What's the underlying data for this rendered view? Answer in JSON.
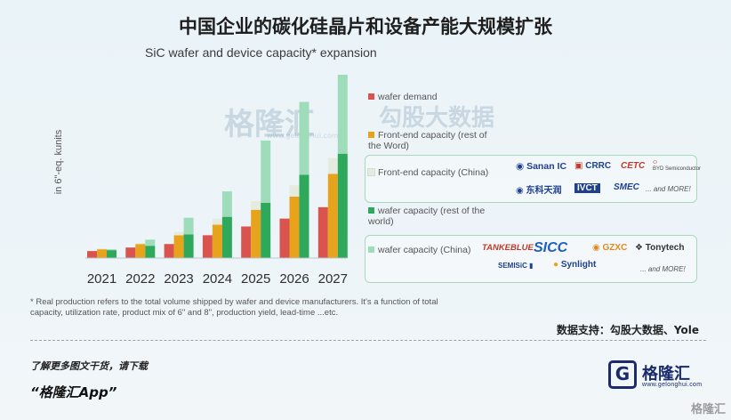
{
  "title": "中国企业的碳化硅晶片和设备产能大规模扩张",
  "subtitle": "SiC wafer and device capacity* expansion",
  "chart_data": {
    "type": "bar",
    "subtype": "grouped-stacked",
    "categories": [
      "2021",
      "2022",
      "2023",
      "2024",
      "2025",
      "2026",
      "2027"
    ],
    "ylabel": "in 6\"-eq. kunits",
    "ylim": [
      0,
      210
    ],
    "grid": false,
    "groups": [
      {
        "stack": "demand",
        "series": [
          {
            "name": "wafer demand",
            "color": "#d9534f",
            "values": [
              8,
              12,
              16,
              26,
              36,
              45,
              58
            ]
          }
        ]
      },
      {
        "stack": "front-end",
        "series": [
          {
            "name": "Front-end capacity (rest of the Word)",
            "color": "#e8a31d",
            "values": [
              10,
              16,
              26,
              38,
              55,
              70,
              96
            ]
          },
          {
            "name": "Front-end capacity (China)",
            "color": "#e5ecdf",
            "values": [
              1,
              1,
              4,
              7,
              10,
              13,
              18
            ]
          }
        ]
      },
      {
        "stack": "wafer",
        "series": [
          {
            "name": "wafer capacity (rest of the world)",
            "color": "#2ea85a",
            "values": [
              9,
              14,
              27,
              47,
              63,
              95,
              119
            ]
          },
          {
            "name": "wafer capacity (China)",
            "color": "#9fdcb9",
            "values": [
              1,
              7,
              19,
              29,
              71,
              83,
              90
            ]
          }
        ]
      }
    ]
  },
  "legend": {
    "items": [
      {
        "label": "wafer demand",
        "color": "#d9534f"
      },
      {
        "label": "Front-end capacity (rest of the Word)",
        "color": "#e8a31d"
      },
      {
        "label": "Front-end capacity (China)",
        "color": "#e5ecdf"
      },
      {
        "label": "wafer capacity (rest of the world)",
        "color": "#2ea85a"
      },
      {
        "label": "wafer capacity (China)",
        "color": "#9fdcb9"
      }
    ],
    "frontend_logos": [
      "Sanan IC",
      "CRRC",
      "CETC",
      "BYD Semiconductor",
      "东科天润",
      "IVCT",
      "SMEC",
      "... and MORE!"
    ],
    "wafer_logos": [
      "TANKEBLUE",
      "SICC",
      "GZXC",
      "Tonytech",
      "SEMISiC",
      "Synlight",
      "... and MORE!"
    ]
  },
  "footnote": "* Real production refers to the total volume shipped by wafer and device manufacturers. It's a function of total capacity, utilization rate, product mix of 6\" and 8\", production yield, lead-time ...etc.",
  "source": "数据支持：勾股大数据、Yole",
  "promo": {
    "line1": "了解更多图文干货，请下载",
    "line2": "“格隆汇App”"
  },
  "brand": {
    "mark": "G",
    "name": "格隆汇",
    "url": "www.gelonghui.com"
  },
  "watermarks": {
    "center": "格隆汇",
    "center_url": "www.gelonghui.com",
    "right": "勾股大数据",
    "corner": "格隆汇"
  },
  "colors": {
    "demand": "#d9534f",
    "frontend_row": "#e8a31d",
    "frontend_cn": "#e5ecdf",
    "wafer_row": "#2ea85a",
    "wafer_cn": "#9fdcb9",
    "brand": "#1a2a6b"
  }
}
